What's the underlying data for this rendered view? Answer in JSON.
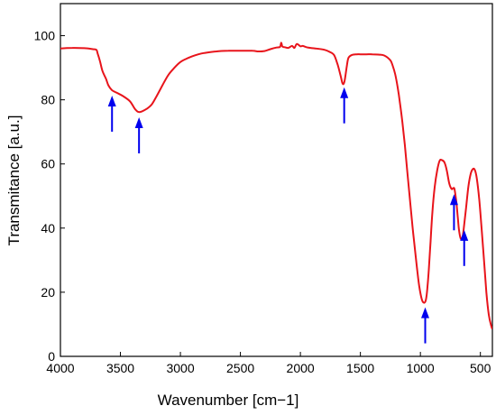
{
  "chart_data": {
    "type": "line",
    "xlabel": "Wavenumber [cm−1]",
    "ylabel": "Transmitance [a.u.]",
    "xlim": [
      4000,
      400
    ],
    "ylim": [
      0,
      110
    ],
    "x_ticks": [
      4000,
      3500,
      3000,
      2500,
      2000,
      1500,
      1000,
      500
    ],
    "y_ticks": [
      0,
      20,
      40,
      60,
      80,
      100
    ],
    "grid": false,
    "legend": "none",
    "series": [
      {
        "color": "#e8141b",
        "x": [
          4000,
          3900,
          3800,
          3730,
          3700,
          3690,
          3670,
          3650,
          3620,
          3600,
          3570,
          3530,
          3480,
          3420,
          3380,
          3350,
          3320,
          3280,
          3240,
          3200,
          3150,
          3100,
          3050,
          3000,
          2950,
          2900,
          2850,
          2800,
          2700,
          2600,
          2500,
          2400,
          2350,
          2300,
          2250,
          2200,
          2170,
          2160,
          2150,
          2130,
          2100,
          2070,
          2050,
          2030,
          2000,
          1980,
          1950,
          1900,
          1850,
          1800,
          1760,
          1720,
          1690,
          1665,
          1650,
          1640,
          1630,
          1615,
          1600,
          1570,
          1530,
          1500,
          1450,
          1400,
          1350,
          1300,
          1250,
          1230,
          1210,
          1190,
          1170,
          1150,
          1130,
          1110,
          1090,
          1070,
          1050,
          1030,
          1010,
          990,
          975,
          960,
          950,
          940,
          930,
          915,
          900,
          880,
          860,
          840,
          820,
          800,
          780,
          760,
          740,
          725,
          715,
          700,
          690,
          680,
          670,
          660,
          650,
          640,
          620,
          600,
          580,
          560,
          545,
          530,
          510,
          490,
          470,
          450,
          430,
          410,
          400
        ],
        "y": [
          96,
          96.2,
          96.1,
          95.8,
          95.6,
          94.5,
          92,
          89,
          86.5,
          84.5,
          83,
          82.2,
          81.2,
          79.5,
          77.2,
          76.2,
          76.4,
          77.2,
          78.5,
          81,
          84.5,
          87.8,
          90,
          91.8,
          92.8,
          93.6,
          94.2,
          94.6,
          95.1,
          95.3,
          95.3,
          95.3,
          95.1,
          95.2,
          95.8,
          96.3,
          96.5,
          97.8,
          96.6,
          96.4,
          96.2,
          96.8,
          96.2,
          97.4,
          96.7,
          96.8,
          96.4,
          96.1,
          95.9,
          95.6,
          95,
          94,
          91,
          87.5,
          85.2,
          85,
          86.2,
          90,
          93,
          94,
          94.2,
          94.2,
          94.2,
          94.2,
          94.1,
          93.8,
          92.3,
          90.5,
          88,
          84,
          79,
          73,
          66,
          58,
          50,
          42,
          35,
          28,
          22,
          18,
          16.8,
          17,
          18.5,
          22,
          27,
          36,
          45,
          53,
          58,
          61,
          61.2,
          60.5,
          58,
          54,
          52.2,
          52.5,
          52,
          48,
          44,
          40,
          37.5,
          36.5,
          37,
          39.5,
          46,
          53,
          57,
          58.5,
          58,
          55.5,
          49,
          40,
          30,
          20,
          13,
          9.5,
          8.5
        ]
      }
    ],
    "arrows_at_x": [
      3570,
      3345,
      1635,
      960,
      720,
      635
    ],
    "arrow_color": "#0000ee"
  }
}
